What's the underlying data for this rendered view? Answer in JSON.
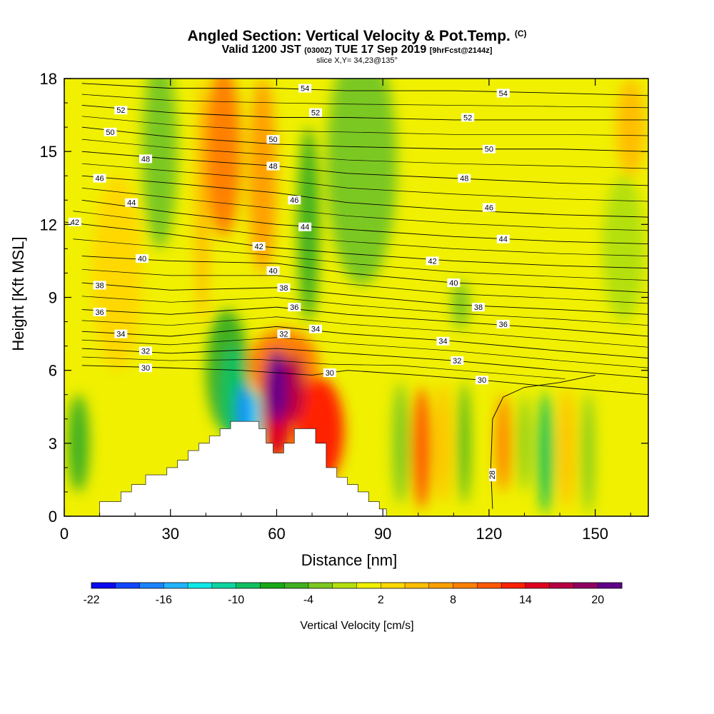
{
  "header": {
    "title": "Angled Section: Vertical Velocity & Pot.Temp.",
    "title_units": "(C)",
    "subtitle_valid": "Valid 1200 JST",
    "subtitle_utc": "(0300Z)",
    "subtitle_date": "TUE 17 Sep 2019",
    "subtitle_fcst": "[9hrFcst@2144z]",
    "slice_info": "slice X,Y= 34,23@135°"
  },
  "chart_data": {
    "type": "heatmap",
    "xlabel": "Distance [nm]",
    "ylabel": "Height [Kft MSL]",
    "xlim": [
      0,
      165
    ],
    "ylim": [
      0,
      18
    ],
    "x_ticks": [
      0,
      30,
      60,
      90,
      120,
      150
    ],
    "y_ticks": [
      0,
      3,
      6,
      9,
      12,
      15,
      18
    ],
    "colorbar": {
      "label": "Vertical Velocity [cm/s]",
      "ticks": [
        -22,
        -16,
        -10,
        -4,
        2,
        8,
        14,
        20
      ],
      "levels_start": -22,
      "levels_step": 2,
      "colors": [
        "#0a0af0",
        "#1046ff",
        "#1a84ff",
        "#22b4ff",
        "#10e8e8",
        "#10d4a0",
        "#10c060",
        "#18a818",
        "#40b020",
        "#7cc820",
        "#b4e010",
        "#f0f000",
        "#ffd800",
        "#ffbe00",
        "#ffa000",
        "#ff8000",
        "#ff5800",
        "#ff2000",
        "#e00020",
        "#b80040",
        "#900060",
        "#60008a"
      ]
    },
    "terrain_profile_nm_kft": [
      [
        0,
        0
      ],
      [
        10,
        0
      ],
      [
        10,
        0.6
      ],
      [
        16,
        0.6
      ],
      [
        16,
        1.0
      ],
      [
        19,
        1.0
      ],
      [
        19,
        1.3
      ],
      [
        23,
        1.3
      ],
      [
        23,
        1.7
      ],
      [
        29,
        1.7
      ],
      [
        29,
        2.0
      ],
      [
        32,
        2.0
      ],
      [
        32,
        2.3
      ],
      [
        35,
        2.3
      ],
      [
        35,
        2.7
      ],
      [
        38,
        2.7
      ],
      [
        38,
        3.0
      ],
      [
        41,
        3.0
      ],
      [
        41,
        3.3
      ],
      [
        44,
        3.3
      ],
      [
        44,
        3.6
      ],
      [
        47,
        3.6
      ],
      [
        47,
        3.9
      ],
      [
        55,
        3.9
      ],
      [
        55,
        3.6
      ],
      [
        57,
        3.6
      ],
      [
        57,
        3.0
      ],
      [
        59,
        3.0
      ],
      [
        59,
        2.6
      ],
      [
        62,
        2.6
      ],
      [
        62,
        3.0
      ],
      [
        65,
        3.0
      ],
      [
        65,
        3.6
      ],
      [
        71,
        3.6
      ],
      [
        71,
        3.0
      ],
      [
        74,
        3.0
      ],
      [
        74,
        2.0
      ],
      [
        77,
        2.0
      ],
      [
        77,
        1.6
      ],
      [
        80,
        1.6
      ],
      [
        80,
        1.3
      ],
      [
        83,
        1.3
      ],
      [
        83,
        1.0
      ],
      [
        86,
        1.0
      ],
      [
        86,
        0.6
      ],
      [
        89,
        0.6
      ],
      [
        89,
        0.3
      ],
      [
        91,
        0.3
      ],
      [
        91,
        0
      ],
      [
        165,
        0
      ]
    ],
    "theta_contours": [
      {
        "label": "28",
        "label_at": [
          121,
          1.7
        ],
        "ln": [
          [
            121,
            0.3
          ],
          [
            120.5,
            2
          ],
          [
            121,
            4
          ],
          [
            124,
            4.9
          ],
          [
            130,
            5.3
          ],
          [
            140,
            5.5
          ],
          [
            150,
            5.8
          ]
        ]
      },
      {
        "label": "30",
        "label_at": [
          75,
          5.9
        ],
        "ln": [
          [
            5,
            6.2
          ],
          [
            30,
            6.1
          ],
          [
            50,
            6.0
          ],
          [
            70,
            5.8
          ],
          [
            80,
            6.0
          ],
          [
            100,
            5.8
          ],
          [
            118,
            5.6
          ],
          [
            140,
            5.3
          ],
          [
            165,
            5.0
          ]
        ]
      },
      {
        "label": "30",
        "label_at": [
          23,
          6.1
        ],
        "ln": []
      },
      {
        "label": "30",
        "label_at": [
          118,
          5.6
        ],
        "ln": []
      },
      {
        "label": "32",
        "label_at": [
          23,
          6.8
        ],
        "ln": [
          [
            5,
            6.9
          ],
          [
            30,
            6.7
          ],
          [
            60,
            6.9
          ],
          [
            80,
            6.7
          ],
          [
            110,
            6.4
          ],
          [
            140,
            6.0
          ],
          [
            165,
            5.7
          ]
        ]
      },
      {
        "label": "32",
        "label_at": [
          111,
          6.4
        ],
        "ln": []
      },
      {
        "label": "32",
        "label_at": [
          62,
          7.5
        ],
        "ln": []
      },
      {
        "label": "34",
        "label_at": [
          16,
          7.5
        ],
        "ln": [
          [
            5,
            7.6
          ],
          [
            30,
            7.4
          ],
          [
            60,
            7.8
          ],
          [
            80,
            7.5
          ],
          [
            110,
            7.2
          ],
          [
            140,
            6.8
          ],
          [
            165,
            6.5
          ]
        ]
      },
      {
        "label": "34",
        "label_at": [
          71,
          7.7
        ],
        "ln": []
      },
      {
        "label": "34",
        "label_at": [
          107,
          7.2
        ],
        "ln": []
      },
      {
        "label": "36",
        "label_at": [
          10,
          8.4
        ],
        "ln": [
          [
            5,
            8.5
          ],
          [
            30,
            8.3
          ],
          [
            60,
            8.6
          ],
          [
            80,
            8.3
          ],
          [
            110,
            8.0
          ],
          [
            140,
            7.7
          ],
          [
            165,
            7.4
          ]
        ]
      },
      {
        "label": "36",
        "label_at": [
          65,
          8.6
        ],
        "ln": []
      },
      {
        "label": "36",
        "label_at": [
          124,
          7.9
        ],
        "ln": []
      },
      {
        "label": "38",
        "label_at": [
          10,
          9.5
        ],
        "ln": [
          [
            5,
            9.6
          ],
          [
            30,
            9.3
          ],
          [
            60,
            9.4
          ],
          [
            80,
            9.1
          ],
          [
            110,
            8.7
          ],
          [
            140,
            8.5
          ],
          [
            165,
            8.3
          ]
        ]
      },
      {
        "label": "38",
        "label_at": [
          62,
          9.4
        ],
        "ln": []
      },
      {
        "label": "38",
        "label_at": [
          117,
          8.6
        ],
        "ln": []
      },
      {
        "label": "40",
        "label_at": [
          22,
          10.6
        ],
        "ln": [
          [
            5,
            10.7
          ],
          [
            30,
            10.5
          ],
          [
            60,
            10.4
          ],
          [
            80,
            10.0
          ],
          [
            110,
            9.6
          ],
          [
            140,
            9.4
          ],
          [
            165,
            9.2
          ]
        ]
      },
      {
        "label": "40",
        "label_at": [
          59,
          10.1
        ],
        "ln": []
      },
      {
        "label": "40",
        "label_at": [
          110,
          9.6
        ],
        "ln": []
      },
      {
        "label": "42",
        "label_at": [
          3,
          12.1
        ],
        "ln": [
          [
            0,
            12.1
          ],
          [
            30,
            11.6
          ],
          [
            55,
            11.1
          ],
          [
            80,
            10.8
          ],
          [
            110,
            10.5
          ],
          [
            140,
            10.3
          ],
          [
            165,
            10.2
          ]
        ]
      },
      {
        "label": "42",
        "label_at": [
          55,
          11.1
        ],
        "ln": []
      },
      {
        "label": "42",
        "label_at": [
          104,
          10.5
        ],
        "ln": []
      },
      {
        "label": "44",
        "label_at": [
          19,
          12.9
        ],
        "ln": [
          [
            5,
            13.0
          ],
          [
            30,
            12.5
          ],
          [
            60,
            12.0
          ],
          [
            80,
            11.8
          ],
          [
            110,
            11.5
          ],
          [
            140,
            11.3
          ],
          [
            165,
            11.2
          ]
        ]
      },
      {
        "label": "44",
        "label_at": [
          68,
          11.9
        ],
        "ln": []
      },
      {
        "label": "44",
        "label_at": [
          124,
          11.4
        ],
        "ln": []
      },
      {
        "label": "46",
        "label_at": [
          10,
          13.9
        ],
        "ln": [
          [
            5,
            14.0
          ],
          [
            30,
            13.7
          ],
          [
            60,
            13.3
          ],
          [
            80,
            12.9
          ],
          [
            110,
            12.6
          ],
          [
            140,
            12.4
          ],
          [
            165,
            12.3
          ]
        ]
      },
      {
        "label": "46",
        "label_at": [
          65,
          13.0
        ],
        "ln": []
      },
      {
        "label": "46",
        "label_at": [
          120,
          12.7
        ],
        "ln": []
      },
      {
        "label": "48",
        "label_at": [
          23,
          14.7
        ],
        "ln": [
          [
            5,
            15.0
          ],
          [
            30,
            14.7
          ],
          [
            60,
            14.4
          ],
          [
            80,
            14.1
          ],
          [
            110,
            13.9
          ],
          [
            140,
            13.7
          ],
          [
            165,
            13.6
          ]
        ]
      },
      {
        "label": "48",
        "label_at": [
          59,
          14.4
        ],
        "ln": []
      },
      {
        "label": "48",
        "label_at": [
          113,
          13.9
        ],
        "ln": []
      },
      {
        "label": "50",
        "label_at": [
          13,
          15.8
        ],
        "ln": [
          [
            5,
            16.0
          ],
          [
            30,
            15.6
          ],
          [
            60,
            15.3
          ],
          [
            80,
            15.2
          ],
          [
            110,
            15.1
          ],
          [
            140,
            15.1
          ],
          [
            165,
            15.0
          ]
        ]
      },
      {
        "label": "50",
        "label_at": [
          59,
          15.5
        ],
        "ln": []
      },
      {
        "label": "50",
        "label_at": [
          120,
          15.1
        ],
        "ln": []
      },
      {
        "label": "52",
        "label_at": [
          16,
          16.7
        ],
        "ln": [
          [
            5,
            16.9
          ],
          [
            30,
            16.6
          ],
          [
            60,
            16.4
          ],
          [
            80,
            16.4
          ],
          [
            110,
            16.3
          ],
          [
            140,
            16.3
          ],
          [
            165,
            16.3
          ]
        ]
      },
      {
        "label": "52",
        "label_at": [
          71,
          16.6
        ],
        "ln": []
      },
      {
        "label": "52",
        "label_at": [
          114,
          16.4
        ],
        "ln": []
      },
      {
        "label": "54",
        "label_at": [
          68,
          17.6
        ],
        "ln": [
          [
            5,
            17.8
          ],
          [
            30,
            17.6
          ],
          [
            60,
            17.6
          ],
          [
            80,
            17.5
          ],
          [
            110,
            17.5
          ],
          [
            140,
            17.4
          ],
          [
            165,
            17.3
          ]
        ]
      },
      {
        "label": "54",
        "label_at": [
          124,
          17.4
        ],
        "ln": []
      }
    ],
    "velocity_blobs_nm_kft_cms": [
      {
        "x": 45,
        "y": 15,
        "rx": 5,
        "ry": 3.5,
        "v": 8
      },
      {
        "x": 56,
        "y": 14,
        "rx": 4,
        "ry": 4,
        "v": 6
      },
      {
        "x": 39,
        "y": 13,
        "rx": 2,
        "ry": 5,
        "v": 4
      },
      {
        "x": 60,
        "y": 5.3,
        "rx": 3,
        "ry": 1.5,
        "v": 21
      },
      {
        "x": 60,
        "y": 4.6,
        "rx": 4.5,
        "ry": 2.3,
        "v": 14
      },
      {
        "x": 65,
        "y": 5.3,
        "rx": 3,
        "ry": 1.4,
        "v": 16
      },
      {
        "x": 72,
        "y": 3.5,
        "rx": 7,
        "ry": 2.2,
        "v": 12
      },
      {
        "x": 62,
        "y": 6.2,
        "rx": 10,
        "ry": 1.5,
        "v": 9
      },
      {
        "x": 51,
        "y": 4.3,
        "rx": 2,
        "ry": 1.2,
        "v": -18
      },
      {
        "x": 48,
        "y": 5.0,
        "rx": 4,
        "ry": 2,
        "v": -10
      },
      {
        "x": 54,
        "y": 4.0,
        "rx": 1.5,
        "ry": 1.2,
        "v": -14
      },
      {
        "x": 46,
        "y": 6.0,
        "rx": 6,
        "ry": 2.5,
        "v": -5
      },
      {
        "x": 69,
        "y": 12,
        "rx": 3,
        "ry": 4,
        "v": -6
      },
      {
        "x": 27,
        "y": 15,
        "rx": 5,
        "ry": 4,
        "v": -4
      },
      {
        "x": 15,
        "y": 10,
        "rx": 7,
        "ry": 4,
        "v": 3
      },
      {
        "x": 84,
        "y": 14.5,
        "rx": 10,
        "ry": 5,
        "v": -3
      },
      {
        "x": 95,
        "y": 3.0,
        "rx": 2.2,
        "ry": 2.5,
        "v": -3
      },
      {
        "x": 101,
        "y": 2.8,
        "rx": 2.5,
        "ry": 2.5,
        "v": 10
      },
      {
        "x": 107,
        "y": 3.0,
        "rx": 2,
        "ry": 2.5,
        "v": 4
      },
      {
        "x": 113,
        "y": 3.0,
        "rx": 1.5,
        "ry": 2.5,
        "v": -6
      },
      {
        "x": 124,
        "y": 3.0,
        "rx": 2,
        "ry": 2,
        "v": 8
      },
      {
        "x": 130,
        "y": 3.0,
        "rx": 1.5,
        "ry": 2,
        "v": -3
      },
      {
        "x": 136,
        "y": 2.6,
        "rx": 2,
        "ry": 2.5,
        "v": -9
      },
      {
        "x": 142,
        "y": 2.8,
        "rx": 2,
        "ry": 2.5,
        "v": 5
      },
      {
        "x": 148,
        "y": 2.6,
        "rx": 1.6,
        "ry": 2.5,
        "v": -4
      },
      {
        "x": 4,
        "y": 3.0,
        "rx": 3,
        "ry": 2,
        "v": -5
      },
      {
        "x": 112,
        "y": 8.7,
        "rx": 2.5,
        "ry": 1.0,
        "v": -4
      },
      {
        "x": 158,
        "y": 11,
        "rx": 6,
        "ry": 3,
        "v": -2
      },
      {
        "x": 160,
        "y": 16,
        "rx": 4,
        "ry": 2,
        "v": 4
      }
    ]
  }
}
